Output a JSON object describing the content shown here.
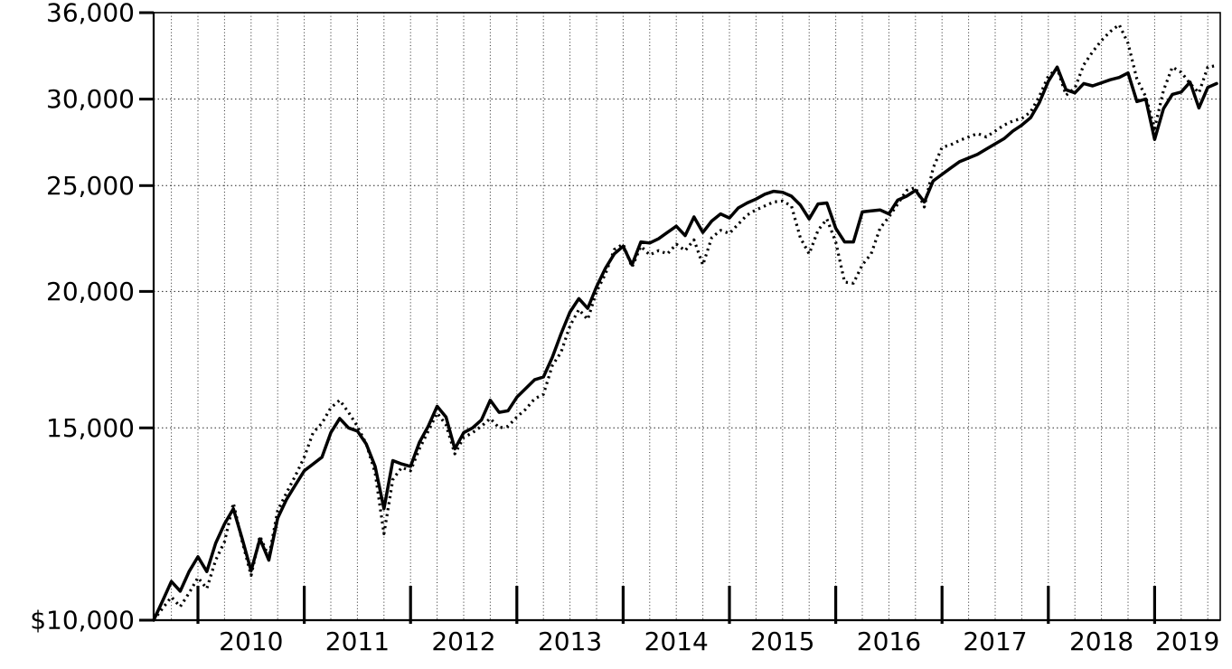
{
  "page": {
    "background": "#ffffff",
    "ink_color": "#000000"
  },
  "chart_data": {
    "type": "line",
    "title": "",
    "y_axis": {
      "scale": "log",
      "min": 10000,
      "max": 36000,
      "ticks": [
        {
          "label": "$10,000",
          "value": 10000
        },
        {
          "label": "15,000",
          "value": 15000
        },
        {
          "label": "20,000",
          "value": 20000
        },
        {
          "label": "25,000",
          "value": 25000
        },
        {
          "label": "30,000",
          "value": 30000
        },
        {
          "label": "36,000",
          "value": 36000
        }
      ]
    },
    "x_axis": {
      "unit": "month",
      "points": 121,
      "first_year_tick_point_index": 5,
      "months_per_year": 12,
      "year_labels": [
        "2010",
        "2011",
        "2012",
        "2013",
        "2014",
        "2015",
        "2016",
        "2017",
        "2018",
        "2019"
      ]
    },
    "grid": {
      "vertical": "quarterly-dotted",
      "horizontal_values": [
        15000,
        20000,
        25000,
        30000
      ]
    },
    "series": [
      {
        "name": "solid-line-series",
        "style": "solid",
        "color": "#000000",
        "values": [
          10000,
          10410,
          10850,
          10630,
          11080,
          11430,
          11080,
          11760,
          12250,
          12650,
          11870,
          11100,
          11870,
          11350,
          12400,
          12900,
          13300,
          13700,
          13900,
          14100,
          14850,
          15300,
          15000,
          14900,
          14500,
          13830,
          12650,
          14000,
          13900,
          13830,
          14550,
          15050,
          15700,
          15350,
          14350,
          14850,
          15000,
          15250,
          15900,
          15500,
          15550,
          16000,
          16300,
          16600,
          16700,
          17400,
          18300,
          19150,
          19700,
          19300,
          20200,
          21000,
          21650,
          22000,
          21150,
          22200,
          22150,
          22350,
          22650,
          22950,
          22500,
          23400,
          22650,
          23200,
          23550,
          23350,
          23850,
          24100,
          24300,
          24550,
          24700,
          24650,
          24450,
          24000,
          23300,
          24050,
          24100,
          22850,
          22200,
          22200,
          23650,
          23700,
          23750,
          23550,
          24250,
          24450,
          24750,
          24150,
          25250,
          25600,
          25950,
          26300,
          26500,
          26700,
          27000,
          27300,
          27600,
          28050,
          28400,
          28850,
          29800,
          31150,
          32100,
          30600,
          30400,
          31000,
          30850,
          31050,
          31250,
          31400,
          31700,
          29850,
          30000,
          27550,
          29400,
          30300,
          30450,
          31100,
          29450,
          30750,
          31000
        ]
      },
      {
        "name": "dotted-line-series",
        "style": "dotted",
        "color": "#000000",
        "values": [
          10000,
          10250,
          10500,
          10290,
          10590,
          10940,
          10690,
          11350,
          11800,
          12800,
          11800,
          10990,
          11940,
          11420,
          12600,
          13080,
          13560,
          14100,
          14850,
          15150,
          15650,
          15900,
          15500,
          15050,
          14500,
          13650,
          12000,
          13450,
          13800,
          13700,
          14350,
          14900,
          15480,
          15100,
          14200,
          14700,
          14850,
          15050,
          15300,
          15000,
          15050,
          15350,
          15600,
          15950,
          16100,
          17100,
          17600,
          18600,
          19250,
          18850,
          20000,
          20750,
          21850,
          22100,
          21050,
          22000,
          21600,
          21800,
          21650,
          22100,
          21800,
          22300,
          21150,
          22400,
          22750,
          22600,
          23050,
          23500,
          23750,
          23950,
          24150,
          24200,
          23950,
          22400,
          21650,
          22750,
          23300,
          22200,
          20400,
          20350,
          21150,
          21650,
          22850,
          23400,
          24050,
          24750,
          24900,
          23900,
          25950,
          27100,
          27250,
          27500,
          27700,
          27900,
          27700,
          28050,
          28400,
          28650,
          28800,
          29200,
          30200,
          31500,
          32000,
          30250,
          30700,
          32250,
          33150,
          33950,
          34600,
          35100,
          33750,
          31300,
          30150,
          28200,
          30550,
          32100,
          31750,
          31000,
          30400,
          32100,
          32200
        ]
      }
    ]
  }
}
